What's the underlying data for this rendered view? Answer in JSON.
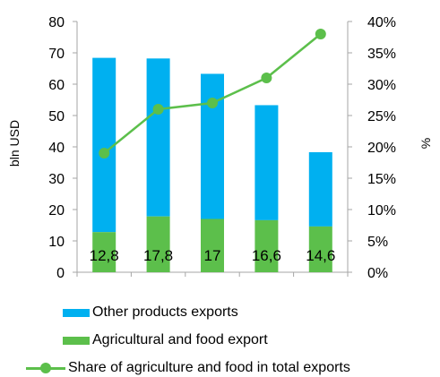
{
  "colors": {
    "other": "#00b0f0",
    "agri": "#5cbf4b",
    "share": "#5cbf4b",
    "axis": "#a6a6a6"
  },
  "chart_data": {
    "type": "bar",
    "stacked": true,
    "categories": [
      "",
      "",
      "",
      "",
      ""
    ],
    "ylabel": "bln USD",
    "ylabel_right": "%",
    "ylim": [
      0,
      80
    ],
    "ylim_right": [
      0,
      0.4
    ],
    "yticks": [
      "0",
      "10",
      "20",
      "30",
      "40",
      "50",
      "60",
      "70",
      "80"
    ],
    "yticks_right": [
      "0%",
      "5%",
      "10%",
      "15%",
      "20%",
      "25%",
      "30%",
      "35%",
      "40%"
    ],
    "grid": false,
    "legend_position": "bottom",
    "series": [
      {
        "name": "Agricultural and food export",
        "type": "bar",
        "color": "#5cbf4b",
        "values": [
          12.8,
          17.8,
          17,
          16.6,
          14.6
        ],
        "labels": [
          "12,8",
          "17,8",
          "17",
          "16,6",
          "14,6"
        ]
      },
      {
        "name": "Other products exports",
        "type": "bar",
        "color": "#00b0f0",
        "values": [
          55.6,
          50.4,
          46.3,
          36.7,
          23.7
        ]
      },
      {
        "name": "Share of agriculture and food in total exports",
        "type": "line",
        "axis": "right",
        "color": "#5cbf4b",
        "values": [
          0.19,
          0.26,
          0.27,
          0.31,
          0.38
        ]
      }
    ]
  },
  "legend": {
    "other": "Other products exports",
    "agri": "Agricultural and food export",
    "share": "Share of agriculture and food in total exports"
  }
}
